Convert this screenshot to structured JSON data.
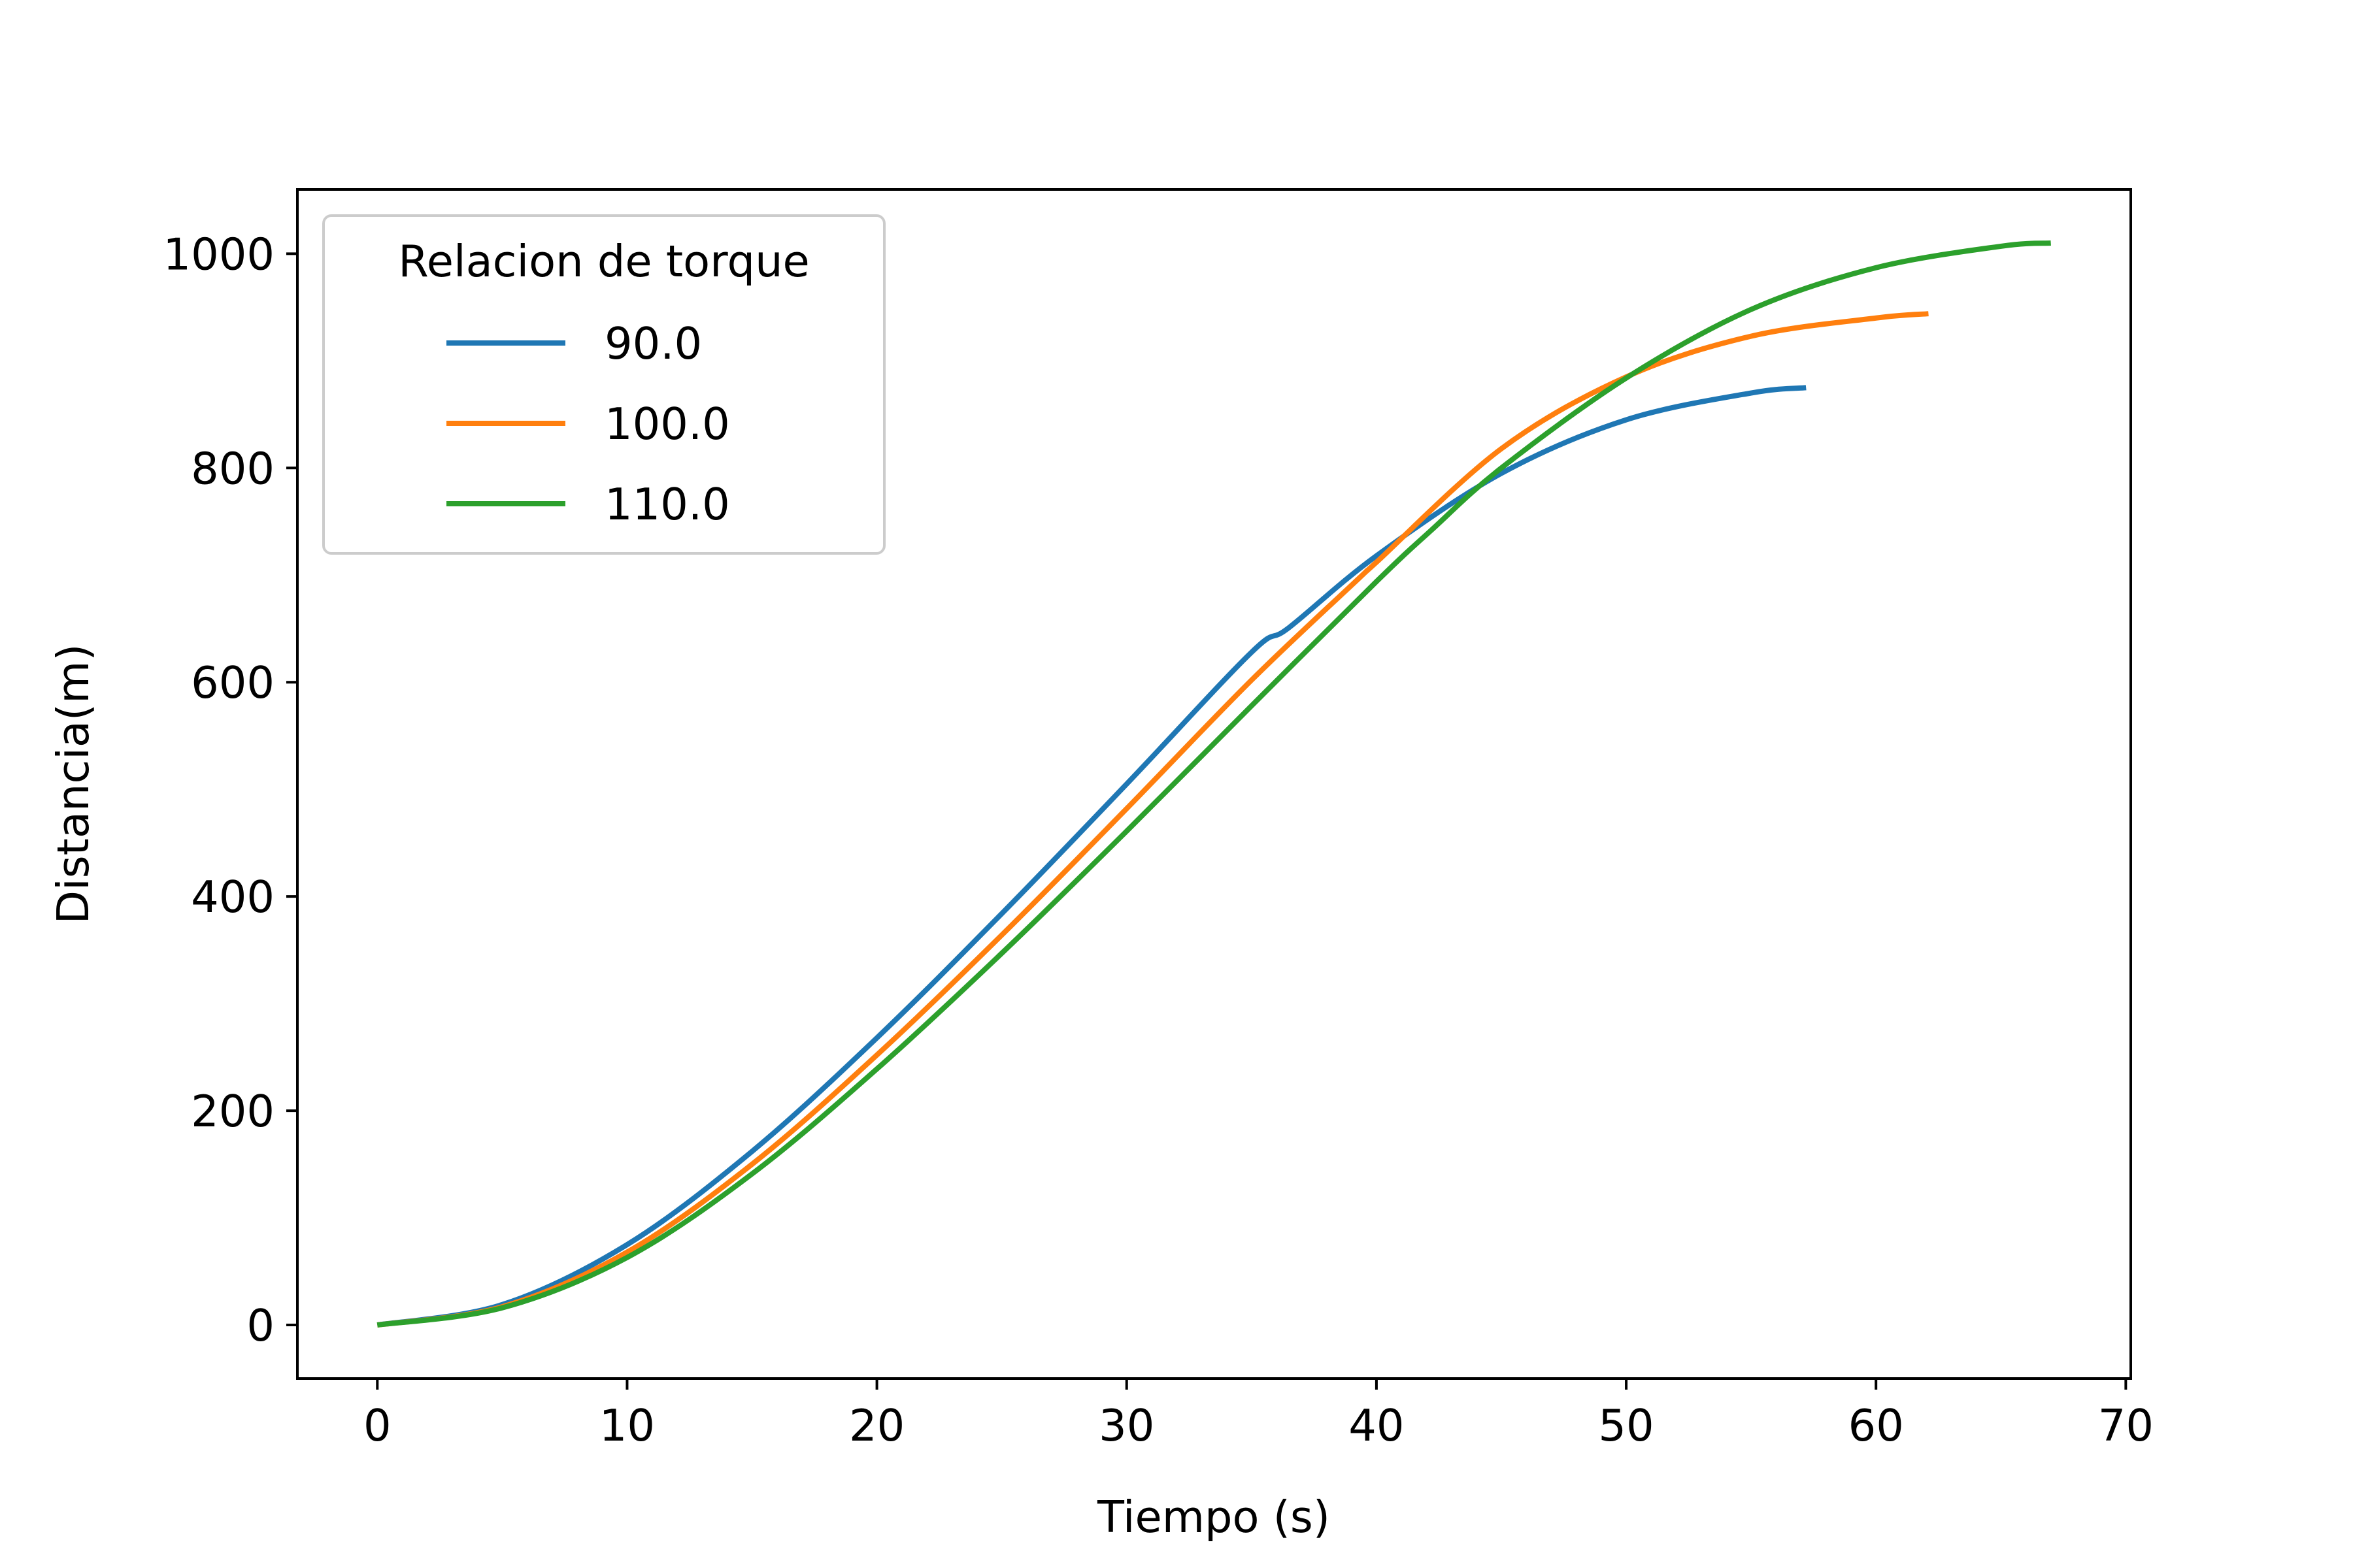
{
  "chart_data": {
    "type": "line",
    "xlabel": "Tiempo (s)",
    "ylabel": "Distancia(m)",
    "xlim": [
      -3.2,
      70.2
    ],
    "ylim": [
      -50,
      1060
    ],
    "xticks": [
      0,
      10,
      20,
      30,
      40,
      50,
      60,
      70
    ],
    "yticks": [
      0,
      200,
      400,
      600,
      800,
      1000
    ],
    "grid": false,
    "legend": {
      "title": "Relacion de torque",
      "position": "top-left"
    },
    "series": [
      {
        "name": "90.0",
        "color": "#1f77b4",
        "points": [
          [
            0,
            0
          ],
          [
            5,
            19
          ],
          [
            10,
            75
          ],
          [
            15,
            162
          ],
          [
            20,
            268
          ],
          [
            25,
            384
          ],
          [
            30,
            505
          ],
          [
            35,
            628
          ],
          [
            36.5,
            651
          ],
          [
            40,
            718
          ],
          [
            45,
            795
          ],
          [
            50,
            845
          ],
          [
            55,
            870
          ],
          [
            57.2,
            875
          ]
        ]
      },
      {
        "name": "100.0",
        "color": "#ff7f0e",
        "points": [
          [
            0,
            0
          ],
          [
            5,
            17
          ],
          [
            10,
            68
          ],
          [
            15,
            150
          ],
          [
            20,
            252
          ],
          [
            25,
            364
          ],
          [
            30,
            482
          ],
          [
            35,
            602
          ],
          [
            39.3,
            697
          ],
          [
            40,
            712
          ],
          [
            45,
            818
          ],
          [
            50,
            885
          ],
          [
            55,
            923
          ],
          [
            60,
            940
          ],
          [
            62.1,
            944
          ]
        ]
      },
      {
        "name": "110.0",
        "color": "#2ca02c",
        "points": [
          [
            0,
            0
          ],
          [
            5,
            16
          ],
          [
            10,
            63
          ],
          [
            15,
            141
          ],
          [
            20,
            239
          ],
          [
            25,
            347
          ],
          [
            30,
            461
          ],
          [
            35,
            578
          ],
          [
            40,
            694
          ],
          [
            42.2,
            742
          ],
          [
            45,
            800
          ],
          [
            50,
            884
          ],
          [
            55,
            948
          ],
          [
            60,
            987
          ],
          [
            65,
            1007
          ],
          [
            67,
            1010
          ]
        ]
      }
    ]
  }
}
